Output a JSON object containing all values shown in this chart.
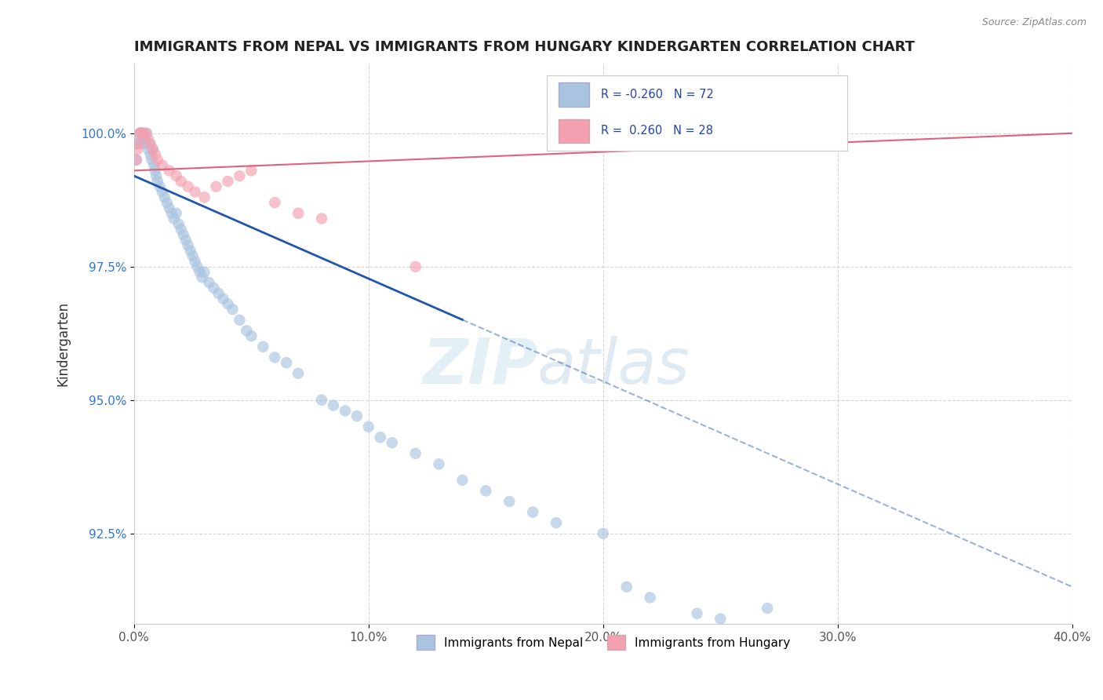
{
  "title": "IMMIGRANTS FROM NEPAL VS IMMIGRANTS FROM HUNGARY KINDERGARTEN CORRELATION CHART",
  "source": "Source: ZipAtlas.com",
  "xlabel_ticks": [
    "0.0%",
    "10.0%",
    "20.0%",
    "30.0%",
    "40.0%"
  ],
  "xlabel_values": [
    0.0,
    10.0,
    20.0,
    30.0,
    40.0
  ],
  "ylabel_ticks": [
    "92.5%",
    "95.0%",
    "97.5%",
    "100.0%"
  ],
  "ylabel_values": [
    92.5,
    95.0,
    97.5,
    100.0
  ],
  "xlim": [
    0.0,
    40.0
  ],
  "ylim": [
    90.8,
    101.3
  ],
  "ylabel": "Kindergarten",
  "legend_entry1": "Immigrants from Nepal",
  "legend_entry2": "Immigrants from Hungary",
  "R_nepal": -0.26,
  "N_nepal": 72,
  "R_hungary": 0.26,
  "N_hungary": 28,
  "nepal_color": "#a8c4e0",
  "hungary_color": "#f4a0b0",
  "nepal_line_color": "#2255aa",
  "hungary_line_color": "#e06080",
  "nepal_scatter_x": [
    0.1,
    0.15,
    0.2,
    0.25,
    0.3,
    0.35,
    0.4,
    0.45,
    0.5,
    0.55,
    0.6,
    0.65,
    0.7,
    0.75,
    0.8,
    0.85,
    0.9,
    0.95,
    1.0,
    1.1,
    1.2,
    1.3,
    1.4,
    1.5,
    1.6,
    1.7,
    1.8,
    1.9,
    2.0,
    2.1,
    2.2,
    2.3,
    2.4,
    2.5,
    2.6,
    2.7,
    2.8,
    2.9,
    3.0,
    3.2,
    3.4,
    3.6,
    3.8,
    4.0,
    4.2,
    4.5,
    4.8,
    5.0,
    5.5,
    6.0,
    6.5,
    7.0,
    8.0,
    8.5,
    9.0,
    9.5,
    10.0,
    10.5,
    11.0,
    12.0,
    13.0,
    14.0,
    15.0,
    16.0,
    17.0,
    18.0,
    20.0,
    21.0,
    22.0,
    24.0,
    25.0,
    27.0
  ],
  "nepal_scatter_y": [
    99.5,
    99.8,
    99.9,
    100.0,
    100.0,
    100.0,
    100.0,
    99.9,
    99.8,
    100.0,
    99.7,
    99.8,
    99.6,
    99.5,
    99.7,
    99.4,
    99.3,
    99.2,
    99.1,
    99.0,
    98.9,
    98.8,
    98.7,
    98.6,
    98.5,
    98.4,
    98.5,
    98.3,
    98.2,
    98.1,
    98.0,
    97.9,
    97.8,
    97.7,
    97.6,
    97.5,
    97.4,
    97.3,
    97.4,
    97.2,
    97.1,
    97.0,
    96.9,
    96.8,
    96.7,
    96.5,
    96.3,
    96.2,
    96.0,
    95.8,
    95.7,
    95.5,
    95.0,
    94.9,
    94.8,
    94.7,
    94.5,
    94.3,
    94.2,
    94.0,
    93.8,
    93.5,
    93.3,
    93.1,
    92.9,
    92.7,
    92.5,
    91.5,
    91.3,
    91.0,
    90.9,
    91.1
  ],
  "hungary_scatter_x": [
    0.1,
    0.15,
    0.2,
    0.25,
    0.3,
    0.4,
    0.5,
    0.6,
    0.7,
    0.8,
    0.9,
    1.0,
    1.2,
    1.5,
    1.8,
    2.0,
    2.3,
    2.6,
    3.0,
    3.5,
    4.0,
    4.5,
    5.0,
    6.0,
    7.0,
    8.0,
    12.0,
    30.0
  ],
  "hungary_scatter_y": [
    99.5,
    99.7,
    99.8,
    100.0,
    100.0,
    100.0,
    100.0,
    99.9,
    99.8,
    99.7,
    99.6,
    99.5,
    99.4,
    99.3,
    99.2,
    99.1,
    99.0,
    98.9,
    98.8,
    99.0,
    99.1,
    99.2,
    99.3,
    98.7,
    98.5,
    98.4,
    97.5,
    100.0
  ],
  "nepal_line_x0": 0.0,
  "nepal_line_y0": 99.2,
  "nepal_line_x1": 40.0,
  "nepal_line_y1": 91.5,
  "nepal_solid_end": 14.0,
  "hungary_line_x0": 0.0,
  "hungary_line_y0": 99.3,
  "hungary_line_x1": 40.0,
  "hungary_line_y1": 100.0,
  "watermark_zip": "ZIP",
  "watermark_atlas": "atlas",
  "background_color": "#ffffff",
  "grid_color": "#cccccc"
}
